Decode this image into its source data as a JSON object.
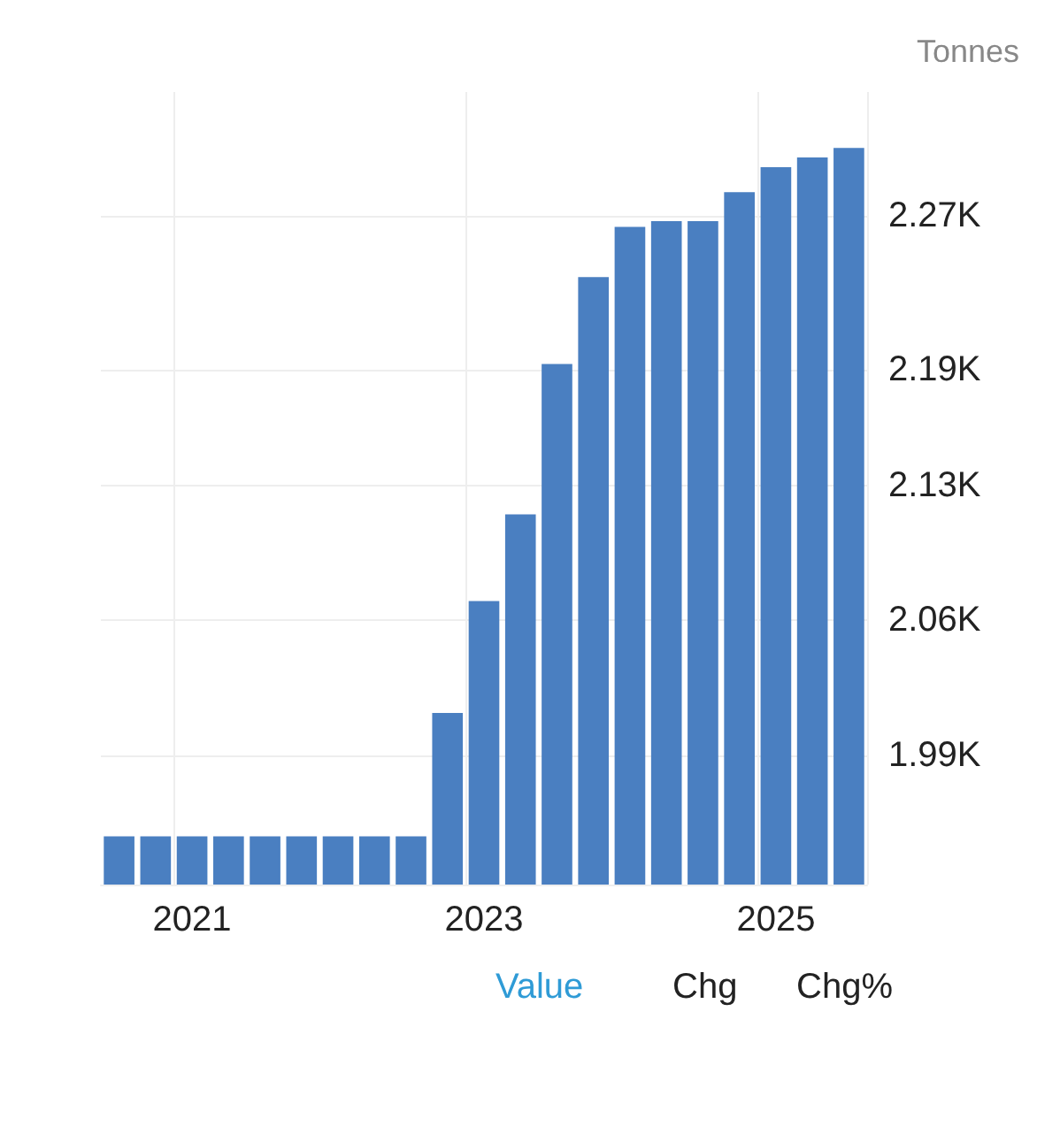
{
  "chart_data": {
    "type": "bar",
    "ylabel": "Tonnes",
    "categories": [
      null,
      null,
      "2021",
      null,
      null,
      null,
      null,
      null,
      null,
      null,
      "2023",
      null,
      null,
      null,
      null,
      null,
      null,
      null,
      "2025",
      null,
      null
    ],
    "values": [
      1948,
      1948,
      1948,
      1948,
      1948,
      1948,
      1948,
      1948,
      1948,
      2012,
      2070,
      2115,
      2193,
      2238,
      2264,
      2267,
      2267,
      2282,
      2295,
      2300,
      2305
    ],
    "color": "#4a7fc1",
    "ylim": [
      1923,
      2334
    ],
    "yticks": [
      {
        "value": 1990,
        "label": "1.99K"
      },
      {
        "value": 2060,
        "label": "2.06K"
      },
      {
        "value": 2130,
        "label": "2.13K"
      },
      {
        "value": 2190,
        "label": "2.19K"
      },
      {
        "value": 2270,
        "label": "2.27K"
      }
    ],
    "grid": true,
    "annotations": [
      "Value",
      "Chg",
      "Chg%"
    ]
  }
}
